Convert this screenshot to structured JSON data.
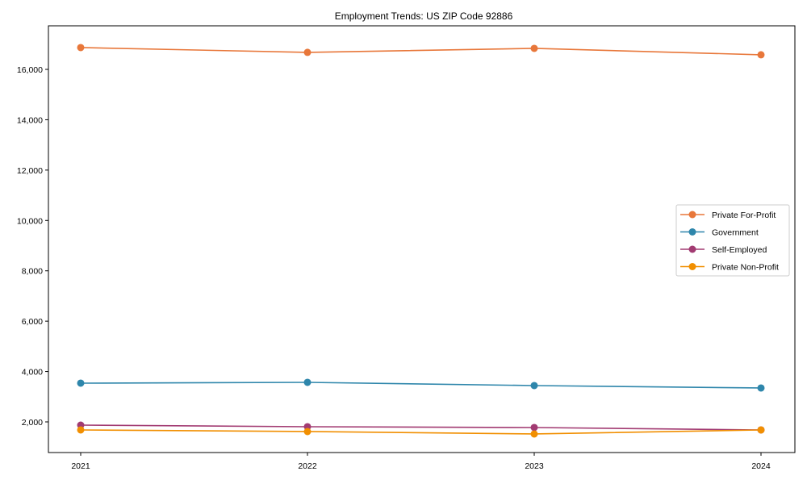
{
  "chart_data": {
    "type": "line",
    "title": "Employment Trends: US ZIP Code 92886",
    "xlabel": "",
    "ylabel": "",
    "x": [
      "2021",
      "2022",
      "2023",
      "2024"
    ],
    "yticks": [
      "2,000",
      "4,000",
      "6,000",
      "8,000",
      "10,000",
      "12,000",
      "14,000",
      "16,000"
    ],
    "ytick_values": [
      2000,
      4000,
      6000,
      8000,
      10000,
      12000,
      14000,
      16000
    ],
    "ylim": [
      850,
      17500
    ],
    "grid": false,
    "legend_position": "center right",
    "series": [
      {
        "name": "Private For-Profit",
        "color": "#E8773A",
        "values": [
          16866,
          16675,
          16835,
          16580
        ]
      },
      {
        "name": "Government",
        "color": "#2E86AB",
        "values": [
          3538,
          3570,
          3442,
          3346
        ]
      },
      {
        "name": "Self-Employed",
        "color": "#A23B72",
        "values": [
          1872,
          1808,
          1776,
          1680
        ]
      },
      {
        "name": "Private Non-Profit",
        "color": "#F18F01",
        "values": [
          1680,
          1616,
          1520,
          1680
        ]
      }
    ]
  }
}
